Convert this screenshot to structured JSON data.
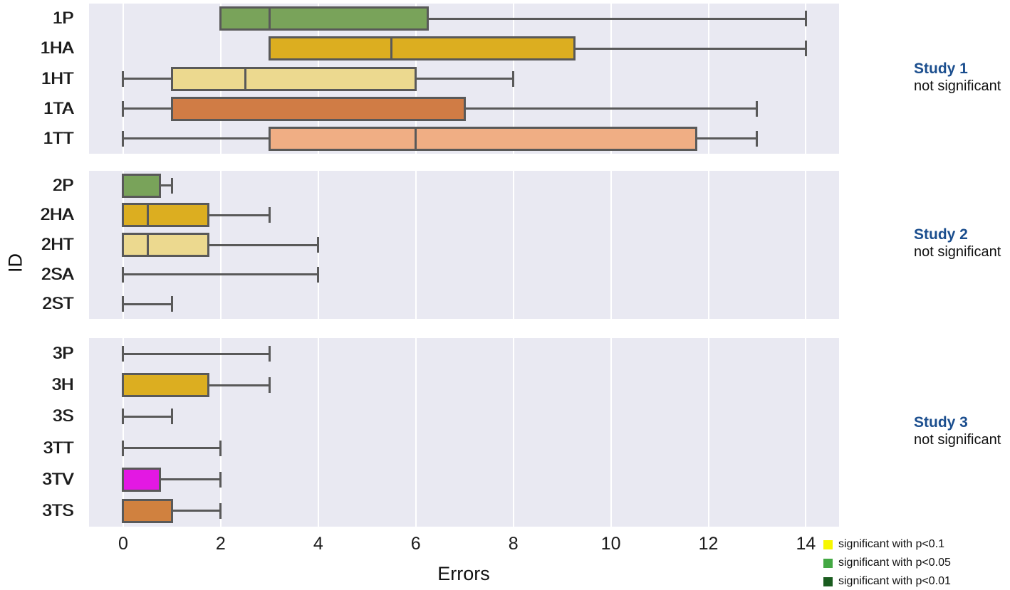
{
  "chart_data": {
    "type": "boxplot",
    "orientation": "horizontal",
    "xlabel": "Errors",
    "ylabel": "ID",
    "x_ticks": [
      0,
      2,
      4,
      6,
      8,
      10,
      12,
      14
    ],
    "xlim": [
      -0.7,
      14.68
    ],
    "grid": "vertical-white-on-gray",
    "box_edge_color": "#595959",
    "panel_bg_color": "#e9e9f2",
    "panels": [
      {
        "study": "Study 1",
        "significance": "not significant",
        "rows": [
          {
            "id": "1P",
            "color": "#79a35a",
            "whisker_low": null,
            "q1": 2,
            "median": 3,
            "q3": 6.25,
            "whisker_high": 14
          },
          {
            "id": "1HA",
            "color": "#dcae20",
            "whisker_low": null,
            "q1": 3,
            "median": 5.5,
            "q3": 9.25,
            "whisker_high": 14
          },
          {
            "id": "1HT",
            "color": "#ecd98f",
            "whisker_low": 0,
            "q1": 1,
            "median": 2.5,
            "q3": 6,
            "whisker_high": 8
          },
          {
            "id": "1TA",
            "color": "#d07c45",
            "whisker_low": 0,
            "q1": 1,
            "median": null,
            "q3": 7,
            "whisker_high": 13
          },
          {
            "id": "1TT",
            "color": "#f0ae84",
            "whisker_low": 0,
            "q1": 3,
            "median": 6,
            "q3": 11.75,
            "whisker_high": 13
          }
        ]
      },
      {
        "study": "Study 2",
        "significance": "not significant",
        "rows": [
          {
            "id": "2P",
            "color": "#79a35a",
            "whisker_low": null,
            "q1": 0,
            "median": null,
            "q3": 0.75,
            "whisker_high": 1
          },
          {
            "id": "2HA",
            "color": "#dcae20",
            "whisker_low": null,
            "q1": 0,
            "median": 0.5,
            "q3": 1.75,
            "whisker_high": 3
          },
          {
            "id": "2HT",
            "color": "#ecd98f",
            "whisker_low": null,
            "q1": 0,
            "median": 0.5,
            "q3": 1.75,
            "whisker_high": 4
          },
          {
            "id": "2SA",
            "color": null,
            "whisker_low": 0,
            "q1": null,
            "median": null,
            "q3": null,
            "whisker_high": 4
          },
          {
            "id": "2ST",
            "color": null,
            "whisker_low": 0,
            "q1": null,
            "median": null,
            "q3": null,
            "whisker_high": 1
          }
        ]
      },
      {
        "study": "Study 3",
        "significance": "not significant",
        "rows": [
          {
            "id": "3P",
            "color": null,
            "whisker_low": 0,
            "q1": null,
            "median": null,
            "q3": null,
            "whisker_high": 3
          },
          {
            "id": "3H",
            "color": "#dcae20",
            "whisker_low": null,
            "q1": 0,
            "median": null,
            "q3": 1.75,
            "whisker_high": 3
          },
          {
            "id": "3S",
            "color": null,
            "whisker_low": 0,
            "q1": null,
            "median": null,
            "q3": null,
            "whisker_high": 1
          },
          {
            "id": "3TT",
            "color": null,
            "whisker_low": 0,
            "q1": null,
            "median": null,
            "q3": null,
            "whisker_high": 2
          },
          {
            "id": "3TV",
            "color": "#e318e3",
            "whisker_low": null,
            "q1": 0,
            "median": null,
            "q3": 0.75,
            "whisker_high": 2
          },
          {
            "id": "3TS",
            "color": "#d0813f",
            "whisker_low": null,
            "q1": 0,
            "median": null,
            "q3": 1,
            "whisker_high": 2
          }
        ]
      }
    ],
    "legend": [
      {
        "label": "significant with p<0.1",
        "color": "#f7f700"
      },
      {
        "label": "significant with p<0.05",
        "color": "#43a843"
      },
      {
        "label": "significant with p<0.01",
        "color": "#1a5c1f"
      }
    ],
    "annotation_accent_color": "#1b4e8e"
  }
}
